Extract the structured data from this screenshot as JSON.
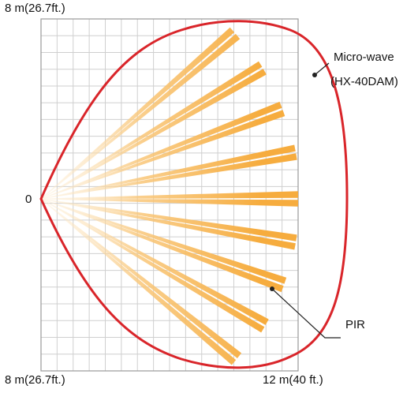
{
  "labels": {
    "top_left": "8 m(26.7ft.)",
    "origin": "0",
    "bottom_left": "8 m(26.7ft.)",
    "bottom_right": "12 m(40 ft.)",
    "microwave_line1": "Micro-wave",
    "microwave_line2": "(HX-40DAM)",
    "pir": "PIR"
  },
  "colors": {
    "grid": "#cfcfcf",
    "frame": "#9a9a9a",
    "microwave_outline": "#d9252a",
    "pir_beam": "#f6b04a",
    "leader": "#222222"
  },
  "grid": {
    "columns": 16,
    "rows": 21
  },
  "pir_beams": {
    "directions": 9,
    "strips_per_direction": 2
  }
}
